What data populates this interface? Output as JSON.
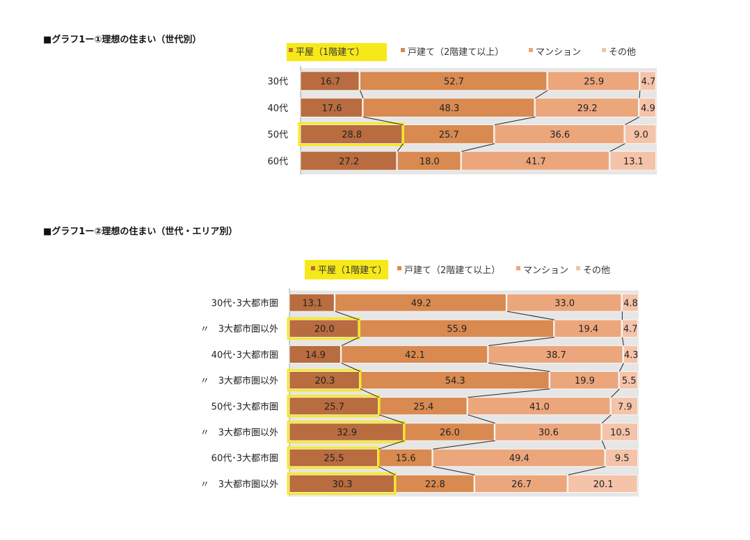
{
  "chart_data": [
    {
      "type": "bar",
      "stacked": true,
      "orientation": "horizontal",
      "title": "■グラフ1ー①理想の住まい（世代別）",
      "categories": [
        "30代",
        "40代",
        "50代",
        "60代"
      ],
      "series": [
        {
          "name": "平屋（1階建て）",
          "color": "#b86c3f",
          "values": [
            16.7,
            17.6,
            28.8,
            27.2
          ]
        },
        {
          "name": "戸建て（2階建て以上）",
          "color": "#d98a50",
          "values": [
            52.7,
            48.3,
            25.7,
            18.0
          ]
        },
        {
          "name": "マンション",
          "color": "#eca67c",
          "values": [
            25.9,
            29.2,
            36.6,
            41.7
          ]
        },
        {
          "name": "その他",
          "color": "#f4c3a9",
          "values": [
            4.7,
            4.9,
            9.0,
            13.1
          ]
        }
      ],
      "highlighted_rows": [
        false,
        false,
        true,
        false
      ],
      "highlight_color": "#f7e81a",
      "xlim": [
        0,
        100
      ],
      "legend": "top"
    },
    {
      "type": "bar",
      "stacked": true,
      "orientation": "horizontal",
      "title": "■グラフ1ー②理想の住まい（世代・エリア別）",
      "categories": [
        "30代･3大都市圏",
        "〃　3大都市圏以外",
        "40代･3大都市圏",
        "〃　3大都市圏以外",
        "50代･3大都市圏",
        "〃　3大都市圏以外",
        "60代･3大都市圏",
        "〃　3大都市圏以外"
      ],
      "series": [
        {
          "name": "平屋（1階建て）",
          "color": "#b86c3f",
          "values": [
            13.1,
            20.0,
            14.9,
            20.3,
            25.7,
            32.9,
            25.5,
            30.3
          ]
        },
        {
          "name": "戸建て（2階建て以上）",
          "color": "#d98a50",
          "values": [
            49.2,
            55.9,
            42.1,
            54.3,
            25.4,
            26.0,
            15.6,
            22.8
          ]
        },
        {
          "name": "マンション",
          "color": "#eca67c",
          "values": [
            33.0,
            19.4,
            38.7,
            19.9,
            41.0,
            30.6,
            49.4,
            26.7
          ]
        },
        {
          "name": "その他",
          "color": "#f4c3a9",
          "values": [
            4.8,
            4.7,
            4.3,
            5.5,
            7.9,
            10.5,
            9.5,
            20.1
          ]
        }
      ],
      "highlighted_rows": [
        false,
        true,
        false,
        true,
        true,
        true,
        true,
        true
      ],
      "highlight_color": "#f7e81a",
      "xlim": [
        0,
        100
      ],
      "legend": "top"
    }
  ]
}
